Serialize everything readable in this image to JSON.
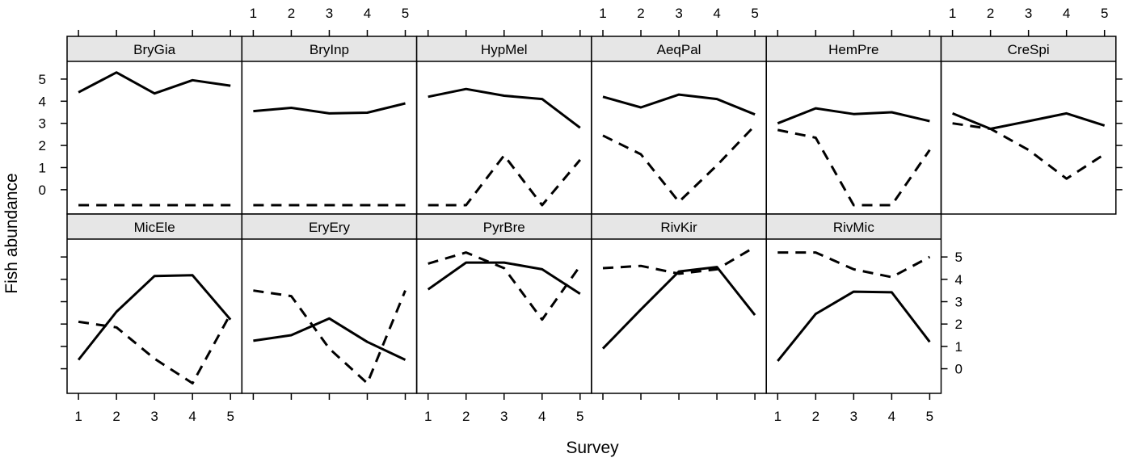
{
  "chart_data": {
    "type": "line",
    "xlabel": "Survey",
    "ylabel": "Fish abundance",
    "x": [
      1,
      2,
      3,
      4,
      5
    ],
    "xlim": [
      0.7,
      5.3
    ],
    "ylim": [
      -1.1,
      5.8
    ],
    "xticks": [
      "1",
      "2",
      "3",
      "4",
      "5"
    ],
    "yticks": [
      "0",
      "1",
      "2",
      "3",
      "4",
      "5"
    ],
    "panels": [
      {
        "name": "BryGia",
        "series": [
          {
            "line": "solid",
            "values": [
              4.4,
              5.3,
              4.35,
              4.95,
              4.7
            ]
          },
          {
            "line": "dashed",
            "values": [
              -0.7,
              -0.7,
              -0.7,
              -0.7,
              -0.7
            ]
          }
        ]
      },
      {
        "name": "BryInp",
        "series": [
          {
            "line": "solid",
            "values": [
              3.55,
              3.7,
              3.45,
              3.48,
              3.9
            ]
          },
          {
            "line": "dashed",
            "values": [
              -0.7,
              -0.7,
              -0.7,
              -0.7,
              -0.7
            ]
          }
        ]
      },
      {
        "name": "HypMel",
        "series": [
          {
            "line": "solid",
            "values": [
              4.2,
              4.55,
              4.25,
              4.1,
              2.8
            ]
          },
          {
            "line": "dashed",
            "values": [
              -0.7,
              -0.7,
              1.55,
              -0.7,
              1.35
            ]
          }
        ]
      },
      {
        "name": "AeqPal",
        "series": [
          {
            "line": "solid",
            "values": [
              4.2,
              3.72,
              4.3,
              4.1,
              3.4
            ]
          },
          {
            "line": "dashed",
            "values": [
              2.45,
              1.6,
              -0.55,
              1.1,
              2.9
            ]
          }
        ]
      },
      {
        "name": "HemPre",
        "series": [
          {
            "line": "solid",
            "values": [
              3.0,
              3.68,
              3.42,
              3.5,
              3.1
            ]
          },
          {
            "line": "dashed",
            "values": [
              2.7,
              2.35,
              -0.7,
              -0.7,
              1.8
            ]
          }
        ]
      },
      {
        "name": "CreSpi",
        "series": [
          {
            "line": "solid",
            "values": [
              3.45,
              2.75,
              3.1,
              3.45,
              2.9
            ]
          },
          {
            "line": "dashed",
            "values": [
              3.0,
              2.75,
              1.8,
              0.5,
              1.6
            ]
          }
        ]
      },
      {
        "name": "MicEle",
        "series": [
          {
            "line": "solid",
            "values": [
              0.4,
              2.55,
              4.15,
              4.18,
              2.2
            ]
          },
          {
            "line": "dashed",
            "values": [
              2.1,
              1.85,
              0.45,
              -0.65,
              2.45
            ]
          }
        ]
      },
      {
        "name": "EryEry",
        "series": [
          {
            "line": "solid",
            "values": [
              1.25,
              1.5,
              2.25,
              1.2,
              0.4
            ]
          },
          {
            "line": "dashed",
            "values": [
              3.5,
              3.25,
              0.9,
              -0.65,
              3.5
            ]
          }
        ]
      },
      {
        "name": "PyrBre",
        "series": [
          {
            "line": "solid",
            "values": [
              3.55,
              4.75,
              4.75,
              4.45,
              3.35
            ]
          },
          {
            "line": "dashed",
            "values": [
              4.7,
              5.2,
              4.5,
              2.2,
              4.6
            ]
          }
        ]
      },
      {
        "name": "RivKir",
        "series": [
          {
            "line": "solid",
            "values": [
              0.9,
              2.65,
              4.35,
              4.55,
              2.4
            ]
          },
          {
            "line": "dashed",
            "values": [
              4.5,
              4.6,
              4.25,
              4.45,
              5.45
            ]
          }
        ]
      },
      {
        "name": "RivMic",
        "series": [
          {
            "line": "solid",
            "values": [
              0.35,
              2.45,
              3.45,
              3.42,
              1.2
            ]
          },
          {
            "line": "dashed",
            "values": [
              5.2,
              5.2,
              4.45,
              4.1,
              5.0
            ]
          }
        ]
      }
    ]
  }
}
